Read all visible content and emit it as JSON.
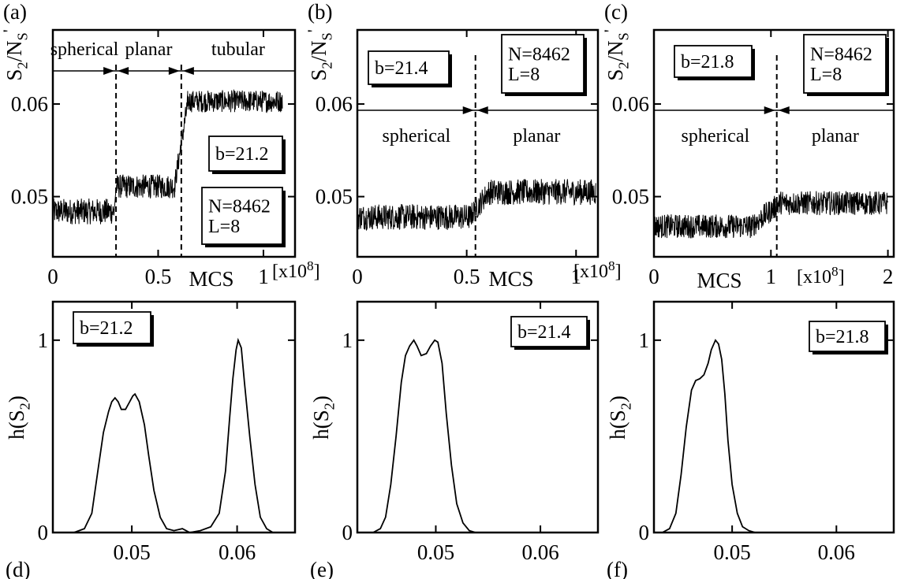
{
  "chart_data": [
    {
      "id": "a",
      "type": "line",
      "panel_label": "(a)",
      "ylabel": "S2/NS'",
      "xlabel": "MCS",
      "x_unit": "[x10^8]",
      "xlim": [
        0,
        1.15
      ],
      "ylim": [
        0.0435,
        0.068
      ],
      "xticks": [
        0,
        0.5,
        1
      ],
      "xtick_labels": [
        "0",
        "0.5",
        "1"
      ],
      "yticks": [
        0.05,
        0.06
      ],
      "ytick_labels": [
        "0.05",
        "0.06"
      ],
      "annotations": [
        "b=21.2",
        "N=8462\nL=8"
      ],
      "phases": [
        "spherical",
        "planar",
        "tubular"
      ],
      "phase_boundaries": [
        0.3,
        0.61
      ],
      "trace_segments": [
        {
          "x": [
            0,
            0.29
          ],
          "mean": 0.0484,
          "amp": 0.0014
        },
        {
          "x": [
            0.3,
            0.58
          ],
          "mean": 0.0511,
          "amp": 0.0013
        },
        {
          "x": [
            0.58,
            0.64
          ],
          "mean_start": 0.0515,
          "mean_end": 0.06,
          "amp": 0.0012
        },
        {
          "x": [
            0.64,
            1.09
          ],
          "mean": 0.0603,
          "amp": 0.0012
        }
      ]
    },
    {
      "id": "b",
      "type": "line",
      "panel_label": "(b)",
      "ylabel": "S2/NS'",
      "xlabel": "MCS",
      "x_unit": "[x10^8]",
      "xlim": [
        0,
        1.1
      ],
      "ylim": [
        0.0435,
        0.068
      ],
      "xticks": [
        0,
        0.5,
        1
      ],
      "xtick_labels": [
        "0",
        "0.5",
        "1"
      ],
      "yticks": [
        0.05,
        0.06
      ],
      "ytick_labels": [
        "0.05",
        "0.06"
      ],
      "annotations": [
        "b=21.4",
        "N=8462\nL=8"
      ],
      "phases": [
        "spherical",
        "planar"
      ],
      "phase_boundaries": [
        0.54
      ],
      "trace_segments": [
        {
          "x": [
            0,
            0.52
          ],
          "mean": 0.0478,
          "amp": 0.0014
        },
        {
          "x": [
            0.52,
            0.6
          ],
          "mean_start": 0.048,
          "mean_end": 0.0505,
          "amp": 0.0013
        },
        {
          "x": [
            0.6,
            1.09
          ],
          "mean": 0.0505,
          "amp": 0.0014
        }
      ]
    },
    {
      "id": "c",
      "type": "line",
      "panel_label": "(c)",
      "ylabel": "S2/NS'",
      "xlabel": "MCS",
      "x_unit": "[x10^8]",
      "xlim": [
        0,
        2.05
      ],
      "ylim": [
        0.0435,
        0.068
      ],
      "xticks": [
        0,
        1,
        2
      ],
      "xtick_labels": [
        "0",
        "1",
        "2"
      ],
      "yticks": [
        0.05,
        0.06
      ],
      "ytick_labels": [
        "0.05",
        "0.06"
      ],
      "annotations": [
        "b=21.8",
        "N=8462\nL=8"
      ],
      "phases": [
        "spherical",
        "planar"
      ],
      "phase_boundaries": [
        1.05
      ],
      "trace_segments": [
        {
          "x": [
            0,
            0.85
          ],
          "mean": 0.0468,
          "amp": 0.0013
        },
        {
          "x": [
            0.85,
            1.1
          ],
          "mean_start": 0.047,
          "mean_end": 0.0495,
          "amp": 0.0013
        },
        {
          "x": [
            1.1,
            2.0
          ],
          "mean": 0.0493,
          "amp": 0.0013
        }
      ]
    },
    {
      "id": "d",
      "type": "line",
      "panel_label": "(d)",
      "ylabel": "h(S2)",
      "xlabel": "",
      "xlim": [
        0.0425,
        0.0655
      ],
      "ylim": [
        0,
        1.2
      ],
      "xticks": [
        0.05,
        0.06
      ],
      "xtick_labels": [
        "0.05",
        "0.06"
      ],
      "yticks": [
        0,
        1
      ],
      "ytick_labels": [
        "0",
        "1"
      ],
      "annotations": [
        "b=21.2"
      ],
      "x": [
        0.0445,
        0.0455,
        0.0462,
        0.0468,
        0.0473,
        0.0478,
        0.0481,
        0.0484,
        0.0487,
        0.049,
        0.0494,
        0.0498,
        0.0501,
        0.0503,
        0.0507,
        0.0512,
        0.0516,
        0.0521,
        0.0527,
        0.0533,
        0.054,
        0.0548,
        0.0555,
        0.0565,
        0.0575,
        0.0583,
        0.0589,
        0.0593,
        0.0596,
        0.0599,
        0.0601,
        0.0604,
        0.0607,
        0.0612,
        0.0617,
        0.0622,
        0.0628,
        0.0634
      ],
      "y": [
        0,
        0.02,
        0.1,
        0.33,
        0.52,
        0.63,
        0.68,
        0.7,
        0.68,
        0.64,
        0.64,
        0.68,
        0.71,
        0.72,
        0.68,
        0.56,
        0.4,
        0.22,
        0.08,
        0.02,
        0.01,
        0.02,
        0.0,
        0.01,
        0.03,
        0.1,
        0.32,
        0.6,
        0.8,
        0.95,
        1.0,
        0.96,
        0.78,
        0.5,
        0.25,
        0.08,
        0.02,
        0
      ]
    },
    {
      "id": "e",
      "type": "line",
      "panel_label": "(e)",
      "ylabel": "h(S2)",
      "xlabel": "",
      "xlim": [
        0.0425,
        0.0655
      ],
      "ylim": [
        0,
        1.2
      ],
      "xticks": [
        0.05,
        0.06
      ],
      "xtick_labels": [
        "0.05",
        "0.06"
      ],
      "yticks": [
        0,
        1
      ],
      "ytick_labels": [
        "0",
        "1"
      ],
      "annotations": [
        "b=21.4"
      ],
      "x": [
        0.044,
        0.0447,
        0.0452,
        0.0457,
        0.0462,
        0.0467,
        0.0471,
        0.0475,
        0.0479,
        0.0482,
        0.0486,
        0.0491,
        0.0495,
        0.0499,
        0.0502,
        0.0506,
        0.051,
        0.0515,
        0.052,
        0.0526,
        0.0532,
        0.0538
      ],
      "y": [
        0,
        0.02,
        0.08,
        0.25,
        0.5,
        0.78,
        0.92,
        0.97,
        1.0,
        0.97,
        0.92,
        0.93,
        0.97,
        1.0,
        0.99,
        0.88,
        0.62,
        0.35,
        0.15,
        0.05,
        0.01,
        0
      ]
    },
    {
      "id": "f",
      "type": "line",
      "panel_label": "(f)",
      "ylabel": "h(S2)",
      "xlabel": "",
      "xlim": [
        0.0425,
        0.0655
      ],
      "ylim": [
        0,
        1.2
      ],
      "xticks": [
        0.05,
        0.06
      ],
      "xtick_labels": [
        "0.05",
        "0.06"
      ],
      "yticks": [
        0,
        1
      ],
      "ytick_labels": [
        "0",
        "1"
      ],
      "annotations": [
        "b=21.8"
      ],
      "x": [
        0.0433,
        0.044,
        0.0446,
        0.0451,
        0.0456,
        0.0461,
        0.0465,
        0.0469,
        0.0473,
        0.0477,
        0.048,
        0.0484,
        0.0487,
        0.049,
        0.0493,
        0.0496,
        0.05,
        0.0505,
        0.051,
        0.0516,
        0.0522
      ],
      "y": [
        0,
        0.02,
        0.1,
        0.3,
        0.55,
        0.74,
        0.79,
        0.8,
        0.82,
        0.88,
        0.95,
        1.0,
        0.98,
        0.9,
        0.72,
        0.48,
        0.25,
        0.1,
        0.03,
        0.01,
        0
      ]
    }
  ]
}
